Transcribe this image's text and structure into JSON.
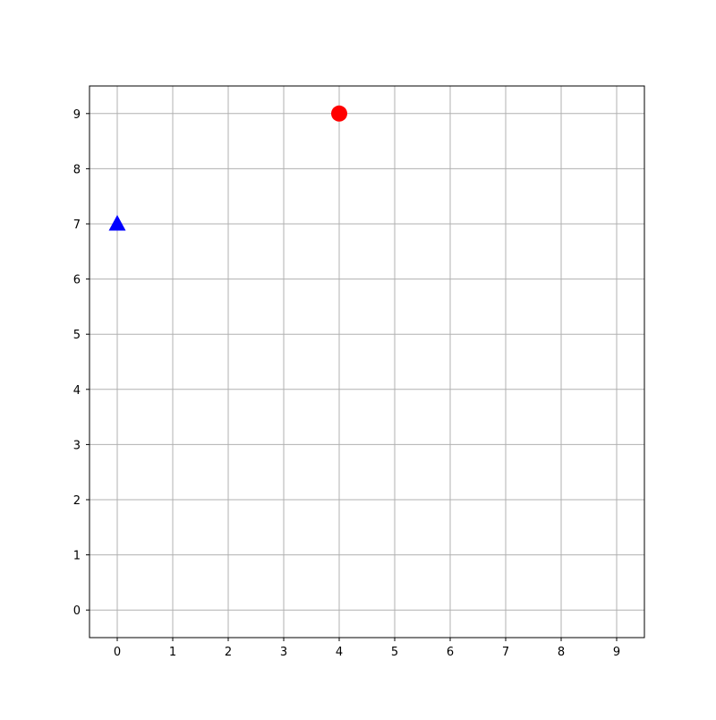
{
  "chart_data": {
    "type": "scatter",
    "title": "",
    "xlabel": "",
    "ylabel": "",
    "xlim": [
      -0.5,
      9.5
    ],
    "ylim": [
      -0.5,
      9.5
    ],
    "x_ticks": [
      0,
      1,
      2,
      3,
      4,
      5,
      6,
      7,
      8,
      9
    ],
    "y_ticks": [
      0,
      1,
      2,
      3,
      4,
      5,
      6,
      7,
      8,
      9
    ],
    "x_tick_labels": [
      "0",
      "1",
      "2",
      "3",
      "4",
      "5",
      "6",
      "7",
      "8",
      "9"
    ],
    "y_tick_labels": [
      "0",
      "1",
      "2",
      "3",
      "4",
      "5",
      "6",
      "7",
      "8",
      "9"
    ],
    "grid": true,
    "legend": "none",
    "series": [
      {
        "marker": "circle",
        "color": "#ff0000",
        "points": [
          {
            "x": 4,
            "y": 9
          }
        ]
      },
      {
        "marker": "triangle",
        "color": "#0000ff",
        "points": [
          {
            "x": 0,
            "y": 7
          }
        ]
      }
    ]
  }
}
